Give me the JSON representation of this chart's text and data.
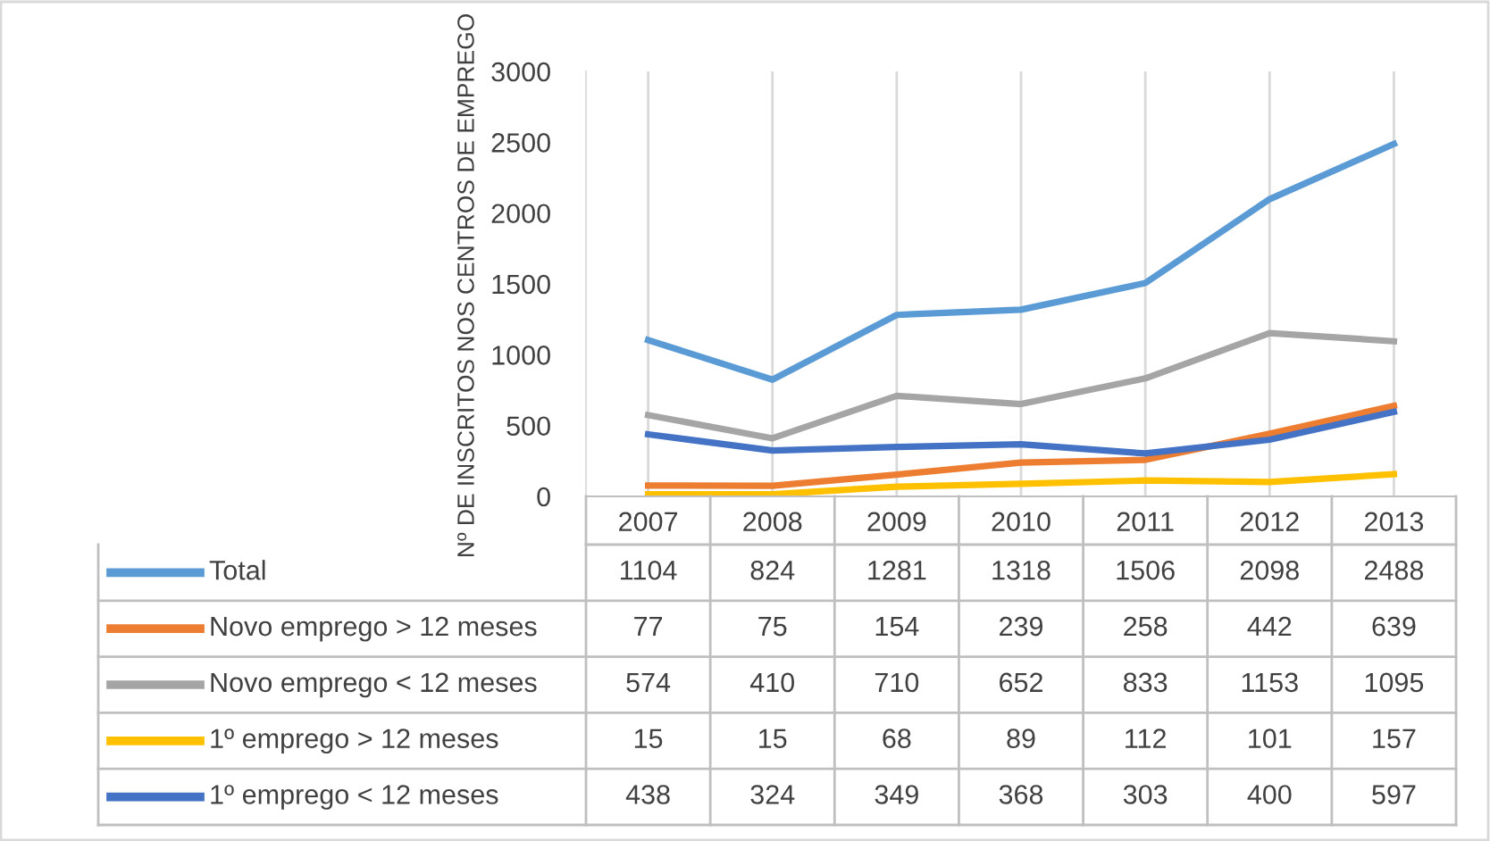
{
  "chart_data": {
    "type": "line",
    "ylabel": "Nº DE INSCRITOS NOS CENTROS DE EMPREGO",
    "categories": [
      "2007",
      "2008",
      "2009",
      "2010",
      "2011",
      "2012",
      "2013"
    ],
    "series": [
      {
        "name": "Total",
        "color": "#5b9bd5",
        "values": [
          1104,
          824,
          1281,
          1318,
          1506,
          2098,
          2488
        ]
      },
      {
        "name": "Novo emprego > 12 meses",
        "color": "#ed7d31",
        "values": [
          77,
          75,
          154,
          239,
          258,
          442,
          639
        ]
      },
      {
        "name": "Novo emprego < 12 meses",
        "color": "#a5a5a5",
        "values": [
          574,
          410,
          710,
          652,
          833,
          1153,
          1095
        ]
      },
      {
        "name": "1º emprego > 12 meses",
        "color": "#ffc000",
        "values": [
          15,
          15,
          68,
          89,
          112,
          101,
          157
        ]
      },
      {
        "name": "1º emprego < 12 meses",
        "color": "#4472c4",
        "values": [
          438,
          324,
          349,
          368,
          303,
          400,
          597
        ]
      }
    ],
    "ylim": [
      0,
      3000
    ],
    "yticks": [
      0,
      500,
      1000,
      1500,
      2000,
      2500,
      3000
    ],
    "grid": "x",
    "legend": "bottom",
    "data_labels": true,
    "marker": "none",
    "line_style": "solid"
  }
}
